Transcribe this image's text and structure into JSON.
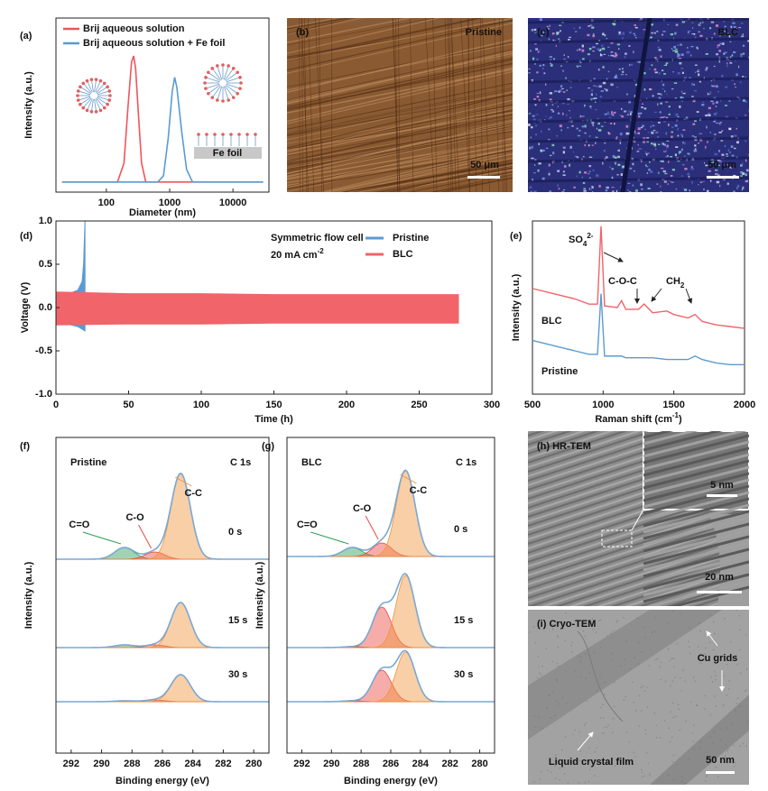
{
  "chart_data": [
    {
      "panel": "(a)",
      "type": "line",
      "x_label": "Diameter (nm)",
      "y_label": "Intensity (a.u.)",
      "xscale": "log",
      "xlim": [
        16,
        37000
      ],
      "xticks": [
        100,
        1000,
        10000
      ],
      "ylim": [
        -0.08,
        1.3
      ],
      "annotation": "Fe foil",
      "series": [
        {
          "name": "Brij aqueous solution",
          "color": "#f0555a",
          "x": [
            20,
            150,
            190,
            220,
            250,
            270,
            290,
            320,
            360,
            420,
            30000
          ],
          "values": [
            0,
            0,
            0.15,
            0.6,
            0.95,
            1.0,
            0.9,
            0.55,
            0.15,
            0,
            0
          ]
        },
        {
          "name": "Brij aqueous solution + Fe foil",
          "color": "#5b9bd0",
          "x": [
            20,
            650,
            800,
            950,
            1100,
            1200,
            1300,
            1550,
            1850,
            2300,
            30000
          ],
          "values": [
            0,
            0,
            0.05,
            0.35,
            0.72,
            0.83,
            0.75,
            0.4,
            0.1,
            0,
            0
          ]
        }
      ]
    },
    {
      "panel": "(d)",
      "type": "band",
      "x_label": "Time (h)",
      "y_label": "Voltage (V)",
      "annotation": "Symmetric flow cell",
      "condition": {
        "text": "20 mA cm",
        "sup": "-2"
      },
      "xlim": [
        0,
        300
      ],
      "xticks": [
        0,
        50,
        100,
        150,
        200,
        250,
        300
      ],
      "ylim": [
        -1,
        1
      ],
      "yticks": [
        {
          "value": -1,
          "label": "-1.0"
        },
        {
          "value": -0.5,
          "label": "-0.5"
        },
        {
          "value": 0,
          "label": "0.0"
        },
        {
          "value": 0.5,
          "label": "0.5"
        },
        {
          "value": 1,
          "label": "1.0"
        }
      ],
      "series": [
        {
          "name": "Pristine",
          "color": "#5b9bd0",
          "x": [
            0,
            5,
            10,
            15,
            18,
            19,
            20
          ],
          "upper": [
            0.14,
            0.15,
            0.17,
            0.2,
            0.3,
            0.5,
            1.0
          ],
          "lower": [
            -0.15,
            -0.17,
            -0.2,
            -0.22,
            -0.25,
            -0.26,
            -0.27
          ]
        },
        {
          "name": "BLC",
          "color": "#f0646a",
          "x": [
            0,
            50,
            100,
            150,
            200,
            250,
            277
          ],
          "upper": [
            0.18,
            0.16,
            0.16,
            0.15,
            0.15,
            0.15,
            0.15
          ],
          "lower": [
            -0.2,
            -0.19,
            -0.19,
            -0.18,
            -0.18,
            -0.18,
            -0.18
          ]
        }
      ]
    },
    {
      "panel": "(e)",
      "type": "line",
      "x_label": {
        "text": "Raman shift (cm",
        "sup": "-1",
        "end": ")"
      },
      "y_label": "Intensity (a.u.)",
      "annotations": [
        {
          "text": "SO",
          "sub": "4",
          "sup": "2-"
        },
        {
          "text": "C-O-C"
        },
        {
          "text": "CH",
          "sub": "2"
        }
      ],
      "xlim": [
        500,
        2000
      ],
      "xticks": [
        500,
        1000,
        1500,
        2000
      ],
      "ylim": [
        0,
        1
      ],
      "series": [
        {
          "name": "BLC",
          "color": "#f0646a",
          "x": [
            500,
            600,
            700,
            800,
            900,
            960,
            985,
            1010,
            1100,
            1130,
            1160,
            1250,
            1290,
            1350,
            1450,
            1500,
            1600,
            1650,
            1700,
            1800,
            1900,
            2000
          ],
          "values": [
            0.61,
            0.59,
            0.57,
            0.55,
            0.52,
            0.52,
            0.97,
            0.51,
            0.5,
            0.54,
            0.49,
            0.49,
            0.52,
            0.47,
            0.48,
            0.46,
            0.44,
            0.46,
            0.42,
            0.4,
            0.39,
            0.38
          ]
        },
        {
          "name": "Pristine",
          "color": "#5b9bd0",
          "x": [
            500,
            600,
            700,
            800,
            900,
            960,
            985,
            1010,
            1100,
            1130,
            1160,
            1250,
            1290,
            1350,
            1450,
            1500,
            1600,
            1650,
            1700,
            1800,
            1900,
            2000
          ],
          "values": [
            0.31,
            0.29,
            0.27,
            0.25,
            0.23,
            0.23,
            0.58,
            0.22,
            0.22,
            0.22,
            0.21,
            0.21,
            0.21,
            0.21,
            0.2,
            0.2,
            0.2,
            0.22,
            0.2,
            0.18,
            0.17,
            0.17
          ]
        }
      ]
    },
    {
      "panel": "(f)",
      "type": "xps",
      "label": "Pristine",
      "core": "C 1s",
      "x_label": "Binding energy (eV)",
      "y_label": "Intensity (a.u.)",
      "xlim": [
        293,
        279
      ],
      "xticks": [
        292,
        290,
        288,
        286,
        284,
        282,
        280
      ],
      "times": [
        "0 s",
        "15 s",
        "30 s"
      ],
      "components": [
        {
          "name": "C=O",
          "color": "#2f9e55",
          "center": 288.5,
          "fwhm": 1.5,
          "heights": [
            0.13,
            0.03,
            0.01
          ]
        },
        {
          "name": "C-O",
          "color": "#ec4a42",
          "center": 286.5,
          "fwhm": 1.5,
          "heights": [
            0.08,
            0.03,
            0.02
          ]
        },
        {
          "name": "C-C",
          "color": "#f0943c",
          "center": 284.8,
          "fwhm": 1.5,
          "heights": [
            0.95,
            0.5,
            0.3
          ]
        }
      ]
    },
    {
      "panel": "(g)",
      "type": "xps",
      "label": "BLC",
      "core": "C 1s",
      "x_label": "Binding energy (eV)",
      "y_label": "Intensity (a.u.)",
      "xlim": [
        293,
        279
      ],
      "xticks": [
        292,
        290,
        288,
        286,
        284,
        282,
        280
      ],
      "times": [
        "0 s",
        "15 s",
        "30 s"
      ],
      "components": [
        {
          "name": "C=O",
          "color": "#2f9e55",
          "center": 288.6,
          "fwhm": 1.5,
          "heights": [
            0.1,
            0.01,
            0.01
          ]
        },
        {
          "name": "C-O",
          "color": "#ec4a42",
          "center": 286.6,
          "fwhm": 1.5,
          "heights": [
            0.15,
            0.45,
            0.35
          ]
        },
        {
          "name": "C-C",
          "color": "#f0943c",
          "center": 285.0,
          "fwhm": 1.5,
          "heights": [
            0.95,
            0.8,
            0.55
          ]
        }
      ]
    }
  ],
  "images": [
    {
      "panel": "(b)",
      "label": "Pristine",
      "scale_bar": "50 μm"
    },
    {
      "panel": "(c)",
      "label": "BLC",
      "scale_bar": "50 μm"
    },
    {
      "panel": "(h) HR-TEM",
      "inset_scale_bar": "5 nm",
      "scale_bar": "20 nm"
    },
    {
      "panel": "(i) Cryo-TEM",
      "annotations": [
        "Cu grids",
        "Liquid crystal film"
      ],
      "scale_bar": "50 nm"
    }
  ]
}
